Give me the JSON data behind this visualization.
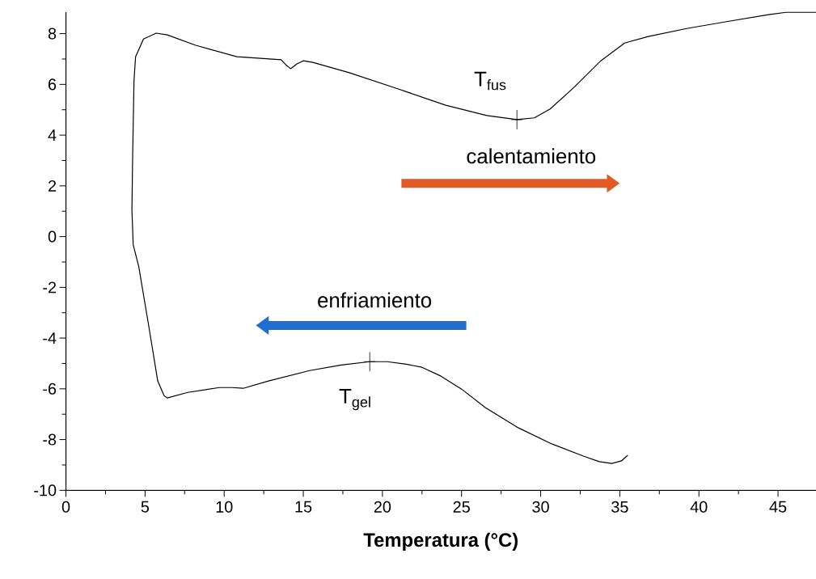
{
  "chart_data": {
    "type": "line",
    "xlabel": "Temperatura (°C)",
    "color": "#000000",
    "x": [
      35.5,
      35.1,
      34.5,
      33.7,
      32.7,
      30.7,
      28.6,
      26.5,
      25.0,
      23.7,
      22.5,
      21.5,
      20.3,
      19.2,
      17.4,
      15.4,
      12.8,
      11.2,
      10.5,
      9.7,
      7.7,
      6.4,
      6.2,
      5.8,
      5.2,
      4.6,
      4.25,
      4.17,
      4.21,
      4.3,
      4.4,
      4.9,
      5.7,
      6.4,
      8.2,
      10.8,
      13.6,
      13.9,
      14.2,
      14.6,
      15.0,
      15.6,
      17.9,
      21.0,
      24.0,
      26.6,
      28.5,
      29.6,
      30.6,
      32.1,
      33.8,
      35.3,
      36.8,
      39.3,
      41.9,
      44.4,
      45.5,
      47.4
    ],
    "values": [
      -8.62,
      -8.84,
      -8.94,
      -8.87,
      -8.65,
      -8.17,
      -7.54,
      -6.74,
      -6.01,
      -5.5,
      -5.15,
      -5.03,
      -4.93,
      -4.93,
      -5.06,
      -5.28,
      -5.69,
      -5.98,
      -5.95,
      -5.95,
      -6.14,
      -6.36,
      -6.27,
      -5.69,
      -3.4,
      -1.18,
      -0.32,
      1.05,
      2.96,
      6.14,
      7.09,
      7.79,
      8.02,
      7.95,
      7.54,
      7.09,
      6.97,
      6.77,
      6.62,
      6.81,
      6.93,
      6.87,
      6.46,
      5.82,
      5.18,
      4.77,
      4.61,
      4.68,
      5.03,
      5.88,
      6.93,
      7.63,
      7.89,
      8.21,
      8.49,
      8.75,
      8.84,
      8.84
    ],
    "xlim": [
      0,
      47.4
    ],
    "ylim": [
      -10,
      8.85
    ],
    "xticks": [
      0,
      5,
      10,
      15,
      20,
      25,
      30,
      35,
      40,
      45
    ],
    "yticks": [
      -10,
      -8,
      -6,
      -4,
      -2,
      0,
      2,
      4,
      6,
      8
    ],
    "annotations": [
      {
        "text": "T$_{fus}$",
        "x": 28.5,
        "y": 4.61
      },
      {
        "text": "T$_{gel}$",
        "x": 19.2,
        "y": -4.93
      },
      "calentamiento",
      "enfriamiento"
    ]
  }
}
